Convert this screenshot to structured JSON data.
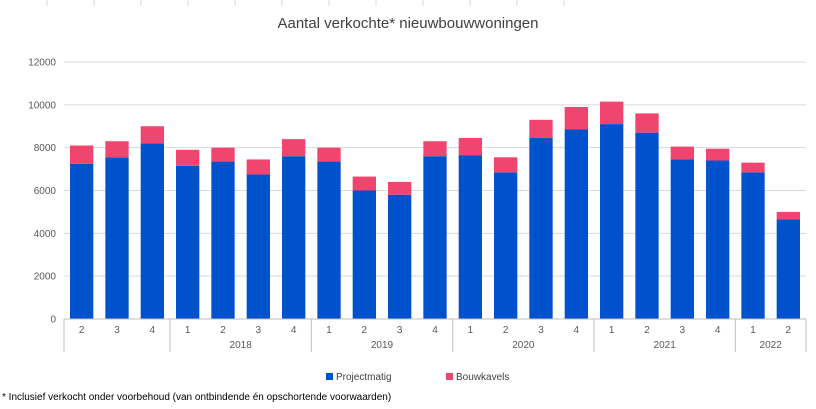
{
  "chart_data": {
    "type": "bar",
    "stacked": true,
    "title": "Aantal verkochte* nieuwbouwwoningen",
    "xlabel": "",
    "ylabel": "",
    "ylim": [
      0,
      12000
    ],
    "yticks": [
      "0",
      "2000",
      "4000",
      "6000",
      "8000",
      "10000",
      "12000"
    ],
    "grid": true,
    "legend_position": "bottom",
    "categories": [
      "2",
      "3",
      "4",
      "1",
      "2",
      "3",
      "4",
      "1",
      "2",
      "3",
      "4",
      "1",
      "2",
      "3",
      "4",
      "1",
      "2",
      "3",
      "4",
      "1",
      "2"
    ],
    "groups": [
      {
        "label": "",
        "count": 3
      },
      {
        "label": "2018",
        "count": 4
      },
      {
        "label": "2019",
        "count": 4
      },
      {
        "label": "2020",
        "count": 4
      },
      {
        "label": "2021",
        "count": 4
      },
      {
        "label": "2022",
        "count": 2
      }
    ],
    "series": [
      {
        "name": "Projectmatig",
        "color": "#0052cc",
        "values": [
          7250,
          7550,
          8200,
          7150,
          7350,
          6750,
          7600,
          7350,
          6000,
          5800,
          7600,
          7650,
          6850,
          8450,
          8850,
          9100,
          8700,
          7450,
          7400,
          6850,
          4650
        ]
      },
      {
        "name": "Bouwkavels",
        "color": "#f0456e",
        "values": [
          850,
          750,
          800,
          750,
          650,
          700,
          800,
          650,
          650,
          600,
          700,
          800,
          700,
          850,
          1050,
          1050,
          900,
          600,
          550,
          450,
          350
        ]
      }
    ],
    "footnote": "* Inclusief verkocht onder voorbehoud (van ontbindende én opschortende voorwaarden)"
  }
}
